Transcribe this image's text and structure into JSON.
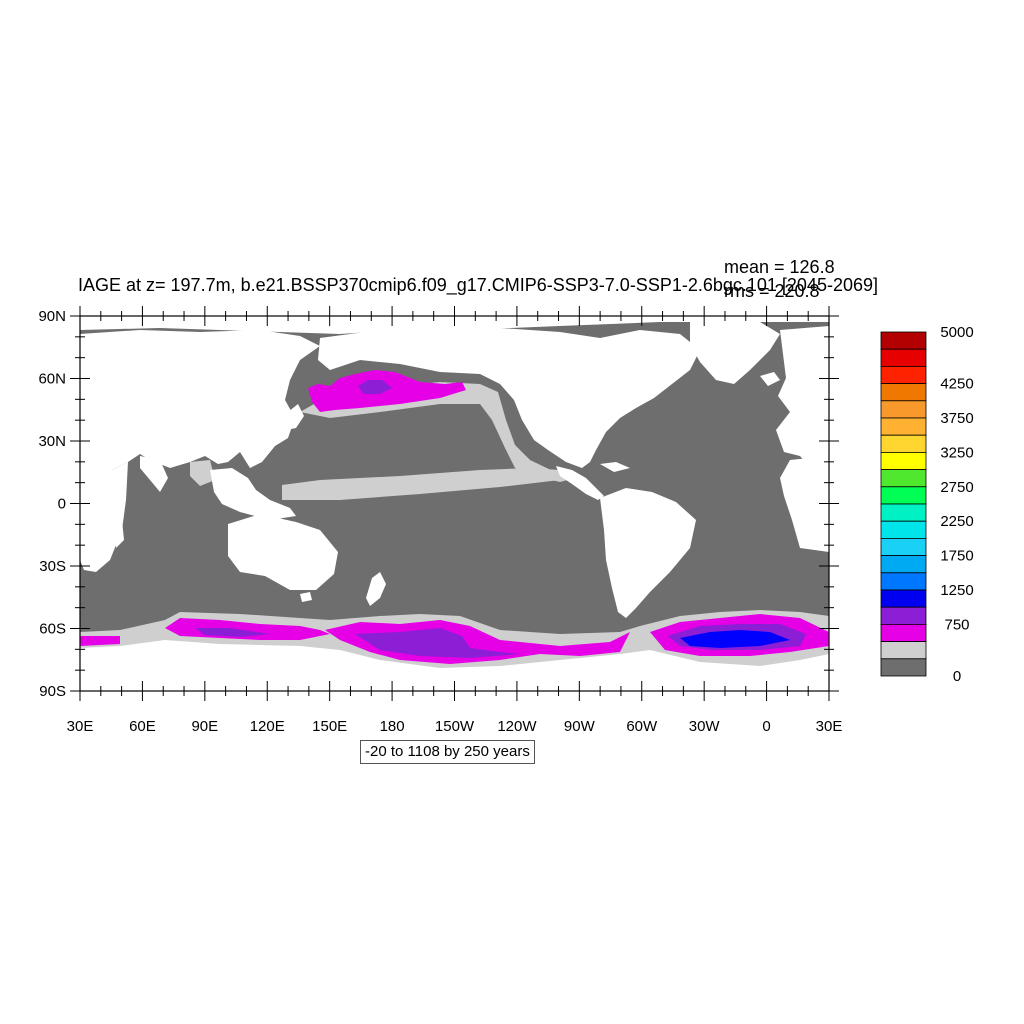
{
  "title": "IAGE at z= 197.7m, b.e21.BSSP370cmip6.f09_g17.CMIP6-SSP3-7.0-SSP1-2.6bgc.101 [2045-2069]",
  "stats": {
    "mean": "mean = 126.8",
    "rms": "rms = 220.8"
  },
  "contour_info": "-20 to 1108 by 250 years",
  "axes": {
    "lat_labels": [
      "90N",
      "60N",
      "30N",
      "0",
      "30S",
      "60S",
      "90S"
    ],
    "lon_labels": [
      "30E",
      "60E",
      "90E",
      "120E",
      "150E",
      "180",
      "150W",
      "120W",
      "90W",
      "60W",
      "30W",
      "0",
      "30E"
    ]
  },
  "colors": {
    "land": "#ffffff",
    "ocean_base": "#6e6e6e",
    "light_gray": "#cfcfcf",
    "magenta": "#e600e6",
    "purple": "#8c1fd6",
    "blue": "#0000ff"
  },
  "colorbar": {
    "labels": [
      "5000",
      "4250",
      "3750",
      "3250",
      "2750",
      "2250",
      "1750",
      "1250",
      "750",
      "0"
    ],
    "colors": [
      "#b30000",
      "#e60000",
      "#ff2200",
      "#f07800",
      "#f79a2b",
      "#ffb232",
      "#ffd530",
      "#ffff00",
      "#4fe82f",
      "#00ff55",
      "#00f2c4",
      "#00e5ea",
      "#1ad1f5",
      "#00aaf2",
      "#0077ff",
      "#0000f0",
      "#8c1fd6",
      "#e600e6",
      "#cfcfcf",
      "#6e6e6e"
    ]
  }
}
